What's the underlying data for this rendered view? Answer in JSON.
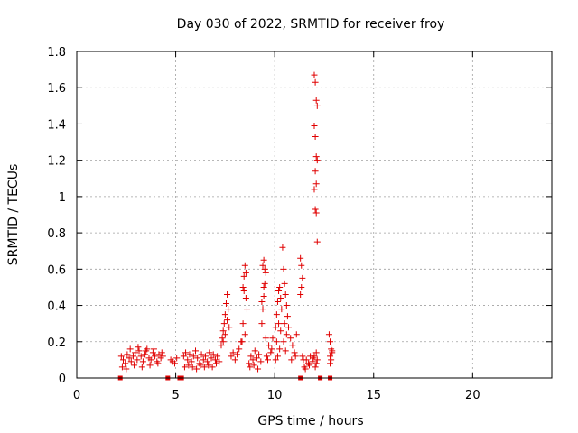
{
  "chart_data": {
    "type": "scatter",
    "title": "Day 030 of 2022, SRMTID for receiver froy",
    "xlabel": "GPS time / hours",
    "ylabel": "SRMTID / TECUs",
    "xlim": [
      0,
      24
    ],
    "ylim": [
      0,
      1.8
    ],
    "xticks": [
      0,
      5,
      10,
      15,
      20
    ],
    "xtick_labels": [
      "0",
      "5",
      "10",
      "15",
      "20"
    ],
    "yticks": [
      0,
      0.2,
      0.4,
      0.6,
      0.8,
      1,
      1.2,
      1.4,
      1.6,
      1.8
    ],
    "ytick_labels": [
      "0",
      "0.2",
      "0.4",
      "0.6",
      "0.8",
      "1",
      "1.2",
      "1.4",
      "1.6",
      "1.8"
    ],
    "grid": true,
    "marker": "plus",
    "color": "#e00000",
    "series": [
      {
        "name": "SRMTID",
        "x": [
          2.25,
          2.35,
          2.45,
          2.55,
          2.65,
          2.75,
          2.85,
          2.95,
          3.05,
          3.15,
          3.25,
          3.35,
          3.45,
          3.55,
          3.65,
          3.75,
          3.85,
          3.95,
          4.05,
          4.15,
          4.25,
          4.35,
          2.3,
          2.5,
          2.7,
          2.9,
          3.1,
          3.3,
          3.5,
          3.7,
          3.9,
          4.1,
          4.3,
          4.75,
          4.85,
          4.95,
          5.05,
          5.4,
          5.5,
          5.6,
          5.7,
          5.8,
          5.9,
          6.0,
          6.1,
          6.2,
          6.3,
          6.4,
          6.5,
          6.6,
          6.7,
          6.8,
          6.9,
          7.0,
          7.1,
          7.2,
          5.45,
          5.65,
          5.85,
          6.05,
          6.25,
          6.45,
          6.65,
          6.85,
          7.05,
          7.3,
          7.35,
          7.4,
          7.45,
          7.5,
          7.55,
          7.6,
          7.65,
          7.7,
          7.4,
          7.5,
          7.6,
          7.8,
          7.9,
          8.0,
          8.1,
          8.2,
          8.3,
          8.4,
          8.45,
          8.5,
          8.55,
          8.6,
          8.4,
          8.5,
          8.45,
          8.55,
          8.35,
          8.7,
          8.8,
          8.9,
          9.0,
          9.1,
          9.2,
          9.3,
          8.75,
          8.95,
          9.15,
          9.35,
          9.4,
          9.45,
          9.5,
          9.55,
          9.4,
          9.45,
          9.5,
          9.45,
          9.35,
          9.55,
          9.6,
          9.7,
          9.8,
          9.9,
          9.65,
          9.85,
          10.05,
          10.1,
          10.15,
          10.2,
          10.25,
          10.3,
          10.35,
          10.1,
          10.2,
          10.3,
          10.25,
          10.15,
          10.05,
          10.4,
          10.45,
          10.5,
          10.55,
          10.6,
          10.65,
          10.7,
          10.5,
          10.6,
          10.45,
          10.55,
          10.8,
          10.9,
          11.0,
          11.1,
          10.85,
          11.05,
          11.3,
          11.35,
          11.4,
          11.35,
          11.3,
          11.4,
          11.45,
          11.5,
          11.6,
          11.7,
          11.8,
          11.9,
          11.55,
          11.75,
          11.95,
          12.0,
          12.05,
          12.1,
          12.15,
          12.0,
          12.05,
          12.1,
          12.15,
          12.05,
          12.1,
          12.0,
          12.05,
          12.1,
          12.15,
          12.0,
          12.1,
          12.1,
          12.15,
          12.05,
          12.75,
          12.8,
          12.85,
          12.9,
          12.8,
          12.85,
          12.9,
          12.8
        ],
        "y": [
          0.12,
          0.1,
          0.08,
          0.13,
          0.11,
          0.09,
          0.12,
          0.14,
          0.1,
          0.15,
          0.12,
          0.09,
          0.13,
          0.16,
          0.11,
          0.1,
          0.14,
          0.12,
          0.09,
          0.13,
          0.11,
          0.12,
          0.06,
          0.05,
          0.16,
          0.07,
          0.17,
          0.06,
          0.15,
          0.07,
          0.16,
          0.08,
          0.14,
          0.1,
          0.09,
          0.08,
          0.11,
          0.12,
          0.14,
          0.1,
          0.13,
          0.09,
          0.12,
          0.15,
          0.11,
          0.08,
          0.13,
          0.1,
          0.12,
          0.09,
          0.14,
          0.11,
          0.13,
          0.1,
          0.12,
          0.09,
          0.06,
          0.07,
          0.06,
          0.05,
          0.07,
          0.06,
          0.07,
          0.06,
          0.08,
          0.18,
          0.22,
          0.26,
          0.3,
          0.35,
          0.41,
          0.46,
          0.38,
          0.28,
          0.2,
          0.24,
          0.32,
          0.12,
          0.14,
          0.1,
          0.13,
          0.16,
          0.2,
          0.5,
          0.56,
          0.62,
          0.44,
          0.38,
          0.3,
          0.24,
          0.48,
          0.58,
          0.2,
          0.08,
          0.12,
          0.1,
          0.15,
          0.11,
          0.13,
          0.09,
          0.06,
          0.07,
          0.05,
          0.3,
          0.38,
          0.45,
          0.52,
          0.58,
          0.62,
          0.65,
          0.6,
          0.5,
          0.42,
          0.22,
          0.12,
          0.18,
          0.14,
          0.22,
          0.1,
          0.16,
          0.28,
          0.35,
          0.42,
          0.48,
          0.5,
          0.44,
          0.38,
          0.2,
          0.3,
          0.26,
          0.16,
          0.12,
          0.1,
          0.72,
          0.6,
          0.52,
          0.46,
          0.4,
          0.34,
          0.28,
          0.3,
          0.24,
          0.2,
          0.15,
          0.22,
          0.18,
          0.14,
          0.24,
          0.1,
          0.12,
          0.66,
          0.62,
          0.55,
          0.5,
          0.46,
          0.12,
          0.1,
          0.06,
          0.1,
          0.08,
          0.12,
          0.09,
          0.05,
          0.07,
          0.11,
          1.67,
          1.63,
          1.53,
          1.5,
          1.39,
          1.33,
          1.22,
          1.2,
          1.14,
          1.07,
          1.04,
          0.93,
          0.91,
          0.75,
          0.12,
          0.08,
          0.14,
          0.1,
          0.06,
          0.24,
          0.2,
          0.16,
          0.14,
          0.12,
          0.1,
          0.15,
          0.08
        ]
      }
    ],
    "gap_markers_x": [
      2.2,
      4.6,
      5.2,
      5.3,
      11.3,
      12.3,
      12.8
    ]
  }
}
